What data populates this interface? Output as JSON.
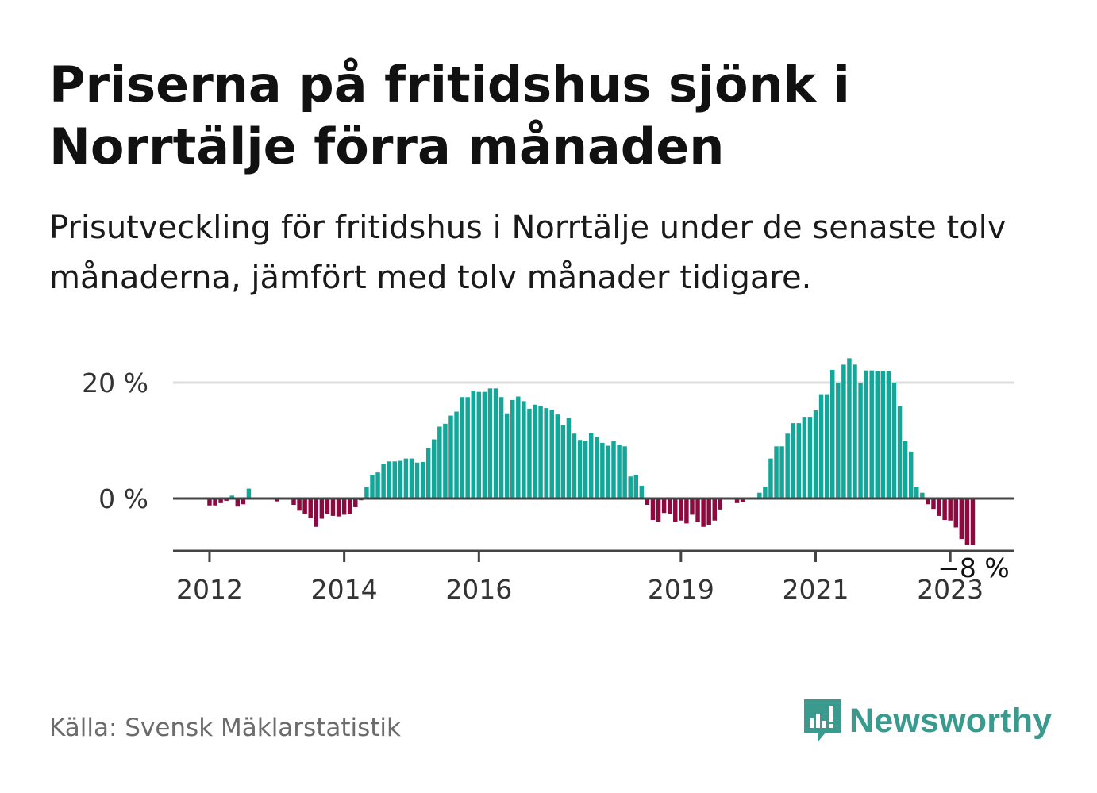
{
  "title": "Priserna på fritidshus sjönk i Norrtälje förra månaden",
  "subtitle": "Prisutveckling för fritidshus i Norrtälje under de senaste tolv månaderna, jämfört med tolv månader tidigare.",
  "source": "Källa: Svensk Mäklarstatistik",
  "brand": "Newsworthy",
  "colors": {
    "positive": "#13a79a",
    "negative": "#8c0a40",
    "zero_line": "#444444",
    "grid": "#dddddd",
    "brand": "#3a9a8e"
  },
  "chart_data": {
    "type": "bar",
    "title": "Priserna på fritidshus sjönk i Norrtälje förra månaden",
    "xlabel": "",
    "ylabel": "",
    "y_tick_labels": [
      "20 %",
      "0 %"
    ],
    "y_ticks": [
      20,
      0
    ],
    "ylim": [
      -9,
      24
    ],
    "x_tick_labels": [
      "2012",
      "2014",
      "2016",
      "2019",
      "2021",
      "2023"
    ],
    "x_tick_years": [
      2012,
      2014,
      2016,
      2019,
      2021,
      2023
    ],
    "start": "2011-07",
    "end_label": "−8 %",
    "series": [
      {
        "name": "Prisutveckling (%)",
        "values": [
          0,
          0,
          0,
          0,
          0,
          0,
          -1.2,
          -1.2,
          -0.8,
          -0.4,
          0.5,
          -1.4,
          -1,
          1.7,
          0,
          0,
          0,
          0,
          -0.5,
          0,
          0,
          -1.1,
          -2.1,
          -2.6,
          -3.4,
          -4.9,
          -3.5,
          -2.6,
          -3,
          -3.1,
          -2.8,
          -2.6,
          -1.5,
          -0.3,
          2,
          4.1,
          4.5,
          6,
          6.4,
          6.4,
          6.5,
          6.9,
          6.9,
          6.2,
          6.3,
          8.7,
          10.2,
          12.4,
          12.9,
          14.3,
          15,
          17.5,
          17.5,
          18.6,
          18.4,
          18.4,
          19,
          19,
          17.5,
          14.7,
          17,
          17.6,
          16.8,
          15.5,
          16.2,
          16,
          15.6,
          15.3,
          14.5,
          12.7,
          13.9,
          11.2,
          10.1,
          10,
          11.3,
          10.6,
          9.6,
          9.1,
          9.9,
          9.3,
          9,
          3.8,
          4.1,
          2.2,
          -1.1,
          -3.7,
          -4,
          -2.5,
          -2.7,
          -4,
          -3.8,
          -4.3,
          -2.8,
          -4.1,
          -4.9,
          -4.6,
          -3.8,
          -1.9,
          0,
          0,
          -0.8,
          -0.6,
          0,
          0,
          1,
          2,
          6.9,
          9,
          9,
          11.2,
          13,
          13,
          14.1,
          14.1,
          15.2,
          18,
          18,
          22.2,
          20,
          23.1,
          24.2,
          23.1,
          19.9,
          22.1,
          22.1,
          22,
          22,
          22,
          20,
          16,
          9.9,
          8.1,
          2,
          1,
          -1,
          -1.8,
          -3,
          -3.7,
          -3.8,
          -5,
          -7,
          -8,
          -8
        ]
      }
    ]
  }
}
